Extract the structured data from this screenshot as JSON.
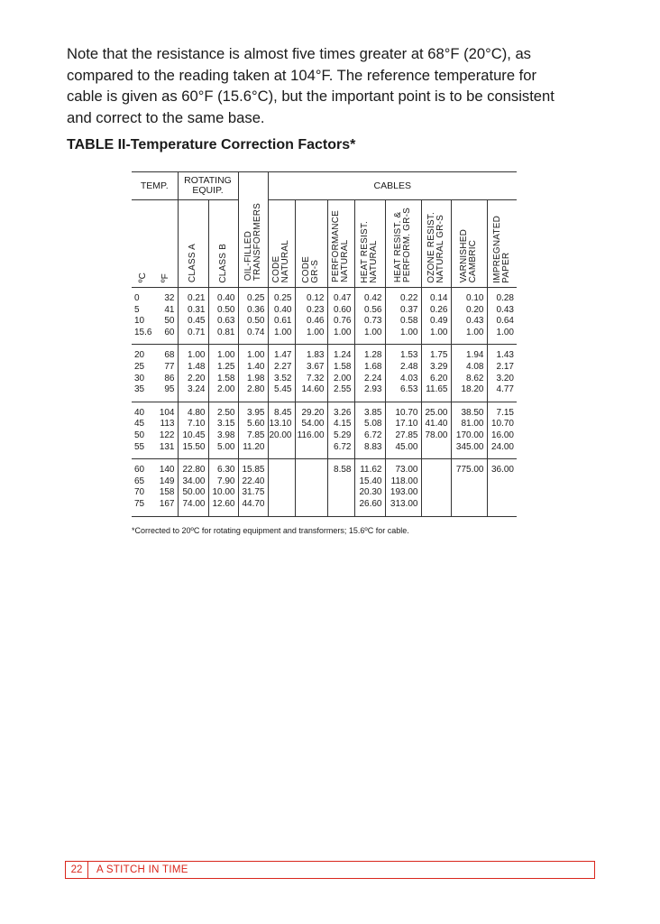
{
  "paragraph": [
    "Note that the resistance is almost five times greater at 68°F (20°C), as",
    "compared to the reading taken at 104°F. The reference temperature for",
    "cable is given as 60°F (15.6°C), but the important point is to be consistent",
    "and correct to the same base."
  ],
  "table_title": "TABLE II-Temperature Correction Factors*",
  "group_headers": {
    "temp": "TEMP.",
    "rotating": "ROTATING\nEQUIP.",
    "cables": "CABLES"
  },
  "column_headers": [
    "ºC",
    "ºF",
    "CLASS A",
    "CLASS B",
    "OIL-FILLED\nTRANSFORMERS",
    "CODE\nNATURAL",
    "CODE\nGR-S",
    "PERFORMANCE\nNATURAL",
    "HEAT RESIST.\nNATURAL",
    "HEAT RESIST. &\nPERFORM. GR-S",
    "OZONE RESIST.\nNATURAL GR-S",
    "VARNISHED\nCAMBRIC",
    "IMPREGNATED\nPAPER"
  ],
  "row_groups": [
    [
      [
        "0",
        "32",
        "0.21",
        "0.40",
        "0.25",
        "0.25",
        "0.12",
        "0.47",
        "0.42",
        "0.22",
        "0.14",
        "0.10",
        "0.28"
      ],
      [
        "5",
        "41",
        "0.31",
        "0.50",
        "0.36",
        "0.40",
        "0.23",
        "0.60",
        "0.56",
        "0.37",
        "0.26",
        "0.20",
        "0.43"
      ],
      [
        "10",
        "50",
        "0.45",
        "0.63",
        "0.50",
        "0.61",
        "0.46",
        "0.76",
        "0.73",
        "0.58",
        "0.49",
        "0.43",
        "0.64"
      ],
      [
        "15.6",
        "60",
        "0.71",
        "0.81",
        "0.74",
        "1.00",
        "1.00",
        "1.00",
        "1.00",
        "1.00",
        "1.00",
        "1.00",
        "1.00"
      ]
    ],
    [
      [
        "20",
        "68",
        "1.00",
        "1.00",
        "1.00",
        "1.47",
        "1.83",
        "1.24",
        "1.28",
        "1.53",
        "1.75",
        "1.94",
        "1.43"
      ],
      [
        "25",
        "77",
        "1.48",
        "1.25",
        "1.40",
        "2.27",
        "3.67",
        "1.58",
        "1.68",
        "2.48",
        "3.29",
        "4.08",
        "2.17"
      ],
      [
        "30",
        "86",
        "2.20",
        "1.58",
        "1.98",
        "3.52",
        "7.32",
        "2.00",
        "2.24",
        "4.03",
        "6.20",
        "8.62",
        "3.20"
      ],
      [
        "35",
        "95",
        "3.24",
        "2.00",
        "2.80",
        "5.45",
        "14.60",
        "2.55",
        "2.93",
        "6.53",
        "11.65",
        "18.20",
        "4.77"
      ]
    ],
    [
      [
        "40",
        "104",
        "4.80",
        "2.50",
        "3.95",
        "8.45",
        "29.20",
        "3.26",
        "3.85",
        "10.70",
        "25.00",
        "38.50",
        "7.15"
      ],
      [
        "45",
        "113",
        "7.10",
        "3.15",
        "5.60",
        "13.10",
        "54.00",
        "4.15",
        "5.08",
        "17.10",
        "41.40",
        "81.00",
        "10.70"
      ],
      [
        "50",
        "122",
        "10.45",
        "3.98",
        "7.85",
        "20.00",
        "116.00",
        "5.29",
        "6.72",
        "27.85",
        "78.00",
        "170.00",
        "16.00"
      ],
      [
        "55",
        "131",
        "15.50",
        "5.00",
        "11.20",
        "",
        "",
        "6.72",
        "8.83",
        "45.00",
        "",
        "345.00",
        "24.00"
      ]
    ],
    [
      [
        "60",
        "140",
        "22.80",
        "6.30",
        "15.85",
        "",
        "",
        "8.58",
        "11.62",
        "73.00",
        "",
        "775.00",
        "36.00"
      ],
      [
        "65",
        "149",
        "34.00",
        "7.90",
        "22.40",
        "",
        "",
        "",
        "15.40",
        "118.00",
        "",
        "",
        ""
      ],
      [
        "70",
        "158",
        "50.00",
        "10.00",
        "31.75",
        "",
        "",
        "",
        "20.30",
        "193.00",
        "",
        "",
        ""
      ],
      [
        "75",
        "167",
        "74.00",
        "12.60",
        "44.70",
        "",
        "",
        "",
        "26.60",
        "313.00",
        "",
        "",
        ""
      ]
    ]
  ],
  "table_footnote": "*Corrected to 20ºC for rotating equipment and transformers;  15.6ºC for cable.",
  "page_footer": {
    "page_number": "22",
    "running_title": "A STITCH IN TIME"
  },
  "colors": {
    "footer_accent": "#d9261c"
  }
}
